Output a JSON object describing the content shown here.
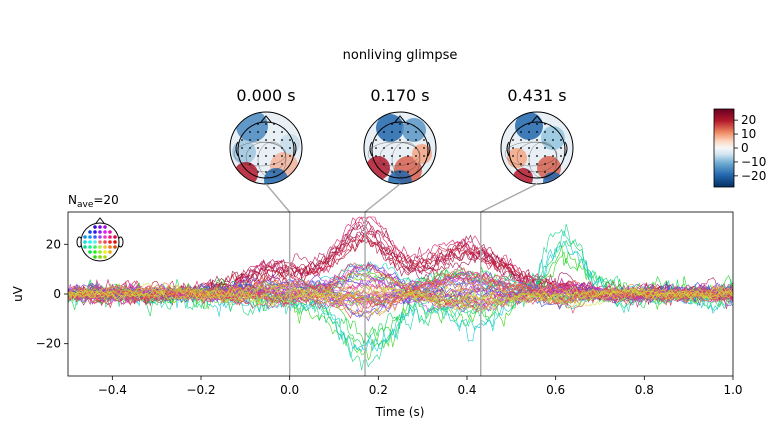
{
  "chart_data": {
    "type": "line",
    "title": "nonliving glimpse",
    "xlabel": "Time (s)",
    "ylabel": "uV",
    "xlim": [
      -0.5,
      1.0
    ],
    "ylim": [
      -33,
      33
    ],
    "xticks": [
      -0.4,
      -0.2,
      0.0,
      0.2,
      0.4,
      0.6,
      0.8,
      1.0
    ],
    "xtick_labels": [
      "−0.4",
      "−0.2",
      "0.0",
      "0.2",
      "0.4",
      "0.6",
      "0.8",
      "1.0"
    ],
    "yticks": [
      -20,
      0,
      20
    ],
    "ytick_labels": [
      "−20",
      "0",
      "20"
    ],
    "nave_label": "N",
    "nave_sub": "ave",
    "nave_value": "=20",
    "grid": false,
    "n_channels": 60,
    "topomap_times": [
      0.0,
      0.17,
      0.431
    ],
    "topomap_labels": [
      "0.000 s",
      "0.170 s",
      "0.431 s"
    ],
    "colorbar": {
      "ticks": [
        20,
        10,
        0,
        -10,
        -20
      ],
      "tick_labels": [
        "20",
        "10",
        "0",
        "−10",
        "−20"
      ],
      "range": [
        -28,
        28
      ],
      "colormap": "RdBu_r"
    },
    "envelope_peak_uV": {
      "baseline": 5,
      "t_0_0": 10,
      "t_0_17": 30,
      "t_0_43": 18,
      "t_0_6_max": 27,
      "min": -30
    }
  },
  "colors": {
    "vline": "#aaaaaa",
    "map_red": "#b2182b",
    "map_blue": "#2166ac"
  }
}
